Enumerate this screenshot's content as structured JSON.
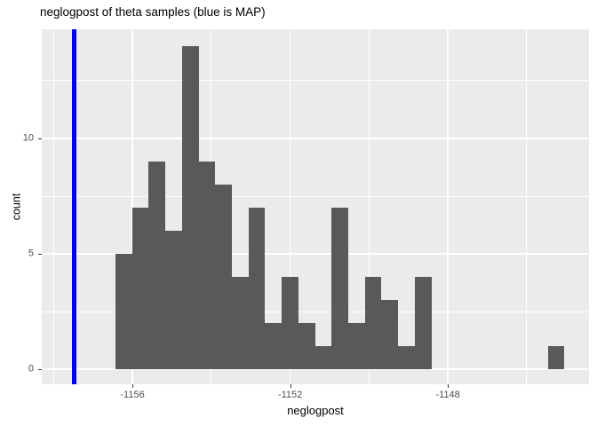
{
  "title": "neglogpost of theta samples (blue is MAP)",
  "chart_data": {
    "type": "bar",
    "subtype": "histogram",
    "title": "neglogpost of theta samples (blue is MAP)",
    "xlabel": "neglogpost",
    "ylabel": "count",
    "bin_start": -1156.43,
    "bin_width": 0.4217,
    "counts": [
      5,
      7,
      9,
      6,
      14,
      9,
      8,
      4,
      7,
      2,
      4,
      2,
      1,
      7,
      2,
      4,
      3,
      1,
      4,
      0,
      0,
      0,
      0,
      0,
      0,
      0,
      1
    ],
    "total_samples": 100,
    "map_line_x": -1157.47,
    "x_ticks": {
      "values": [
        -1156,
        -1152,
        -1148
      ],
      "labels": [
        "-1156",
        "-1152",
        "-1148"
      ]
    },
    "y_ticks": {
      "values": [
        0,
        5,
        10
      ],
      "labels": [
        "0",
        "5",
        "10"
      ]
    },
    "x_minor": [
      -1158,
      -1154,
      -1150,
      -1146
    ],
    "y_minor": [
      2.5,
      7.5,
      12.5
    ],
    "x_range": [
      -1158.3,
      -1144.42
    ],
    "y_range": [
      -0.65,
      14.73
    ],
    "grid": true,
    "legend_position": "none",
    "colors": {
      "plot_bg": "#FFFFFF",
      "panel_bg": "#EBEBEB",
      "grid": "#FFFFFF",
      "bar": "#595959",
      "map_line": "#0000FF",
      "axis_text": "#4D4D4D",
      "tick_mark": "#333333",
      "title_text": "#000000"
    }
  }
}
